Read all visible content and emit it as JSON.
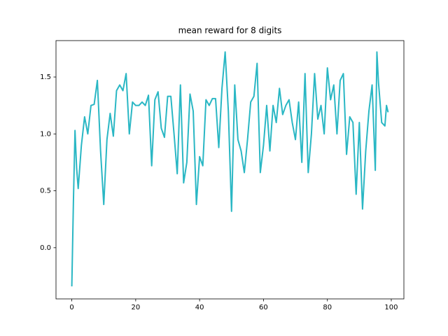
{
  "chart_data": {
    "type": "line",
    "title": "mean reward for 8 digits",
    "x": [
      0,
      0.5,
      1,
      1.5,
      2,
      3,
      4,
      5,
      6,
      7,
      8,
      9,
      10,
      11,
      12,
      13,
      14,
      15,
      16,
      17,
      18,
      19,
      20,
      21,
      22,
      23,
      24,
      25,
      26,
      27,
      28,
      29,
      30,
      31,
      32,
      33,
      34,
      35,
      36,
      37,
      38,
      39,
      40,
      41,
      42,
      43,
      44,
      45,
      46,
      47,
      48,
      49,
      50,
      51,
      52,
      53,
      54,
      55,
      56,
      57,
      58,
      59,
      60,
      61,
      62,
      63,
      64,
      65,
      66,
      67,
      68,
      69,
      70,
      71,
      72,
      73,
      74,
      75,
      76,
      77,
      78,
      79,
      80,
      81,
      82,
      83,
      84,
      85,
      86,
      87,
      88,
      89,
      90,
      91,
      92,
      93,
      94,
      95,
      95.5,
      96,
      97,
      98,
      98.5,
      99
    ],
    "series": [
      {
        "color": "#2ab7c4",
        "values": [
          -0.34,
          0.4,
          1.03,
          0.7,
          0.52,
          0.9,
          1.15,
          1.0,
          1.25,
          1.26,
          1.47,
          0.85,
          0.38,
          0.95,
          1.18,
          0.98,
          1.38,
          1.43,
          1.38,
          1.53,
          1.0,
          1.28,
          1.25,
          1.25,
          1.28,
          1.25,
          1.34,
          0.72,
          1.3,
          1.37,
          1.05,
          0.97,
          1.33,
          1.33,
          1.0,
          0.65,
          1.43,
          0.57,
          0.75,
          1.35,
          1.2,
          0.38,
          0.8,
          0.72,
          1.3,
          1.25,
          1.31,
          1.31,
          0.88,
          1.4,
          1.72,
          1.2,
          0.32,
          1.43,
          0.95,
          0.85,
          0.66,
          0.95,
          1.28,
          1.33,
          1.62,
          0.66,
          0.9,
          1.25,
          0.85,
          1.25,
          1.1,
          1.4,
          1.17,
          1.25,
          1.3,
          1.1,
          0.95,
          1.28,
          0.75,
          1.53,
          0.66,
          1.0,
          1.53,
          1.13,
          1.25,
          1.0,
          1.58,
          1.3,
          1.43,
          1.0,
          1.47,
          1.53,
          0.82,
          1.15,
          1.1,
          0.47,
          1.1,
          0.34,
          0.85,
          1.2,
          1.43,
          0.68,
          1.72,
          1.45,
          1.1,
          1.07,
          1.25,
          1.19
        ]
      }
    ],
    "xlim": [
      -4.95,
      103.95
    ],
    "xticks": [
      0,
      20,
      40,
      60,
      80,
      100
    ],
    "ylim": [
      -0.45,
      1.82
    ],
    "yticks": [
      {
        "value": 0,
        "label": "0.0"
      },
      0.5,
      {
        "value": 1,
        "label": "1.0"
      },
      1.5
    ]
  }
}
